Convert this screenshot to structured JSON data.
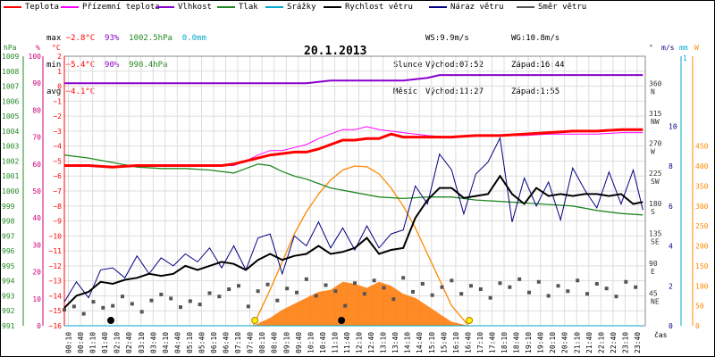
{
  "legend": [
    {
      "label": "Teplota",
      "color": "#ff0000"
    },
    {
      "label": "Přízemní teplota",
      "color": "#ff00ff"
    },
    {
      "label": "Vlhkost",
      "color": "#8800cc"
    },
    {
      "label": "Tlak",
      "color": "#228822"
    },
    {
      "label": "Srážky",
      "color": "#00aacc"
    },
    {
      "label": "Rychlost větru",
      "color": "#000000"
    },
    {
      "label": "Náraz větru",
      "color": "#000080"
    },
    {
      "label": "Směr větru",
      "color": "#555555"
    }
  ],
  "stats": {
    "max_label": "max",
    "max_temp": "−2.8°C",
    "max_hum": "93%",
    "max_press": "1002.5hPa",
    "max_rain": "0.0mm",
    "min_label": "min",
    "min_temp": "−5.4°C",
    "min_hum": "90%",
    "min_press": "998.4hPa",
    "avg_label": "avg",
    "avg_temp": "−4.1°C",
    "ws": "WS:9.9m/s",
    "wg": "WG:10.8m/s",
    "sun_label": "Slunce",
    "sunrise": "Východ:07:52",
    "sunset": "Západ:16:44",
    "moon_label": "Měsíc",
    "moonrise": "Východ:11:27",
    "moonset": "Západ:1:55"
  },
  "date": "20.1.2013",
  "axis_headers": {
    "hpa": "hPa",
    "pct": "%",
    "degc": "°C",
    "dir": "°",
    "ms": "m/s",
    "mm": "mm",
    "w": "W",
    "cas": "čas"
  },
  "colors": {
    "temp": "#ff0000",
    "ground_temp": "#ff00ff",
    "humidity": "#8800cc",
    "pressure": "#228822",
    "rain": "#00aacc",
    "wind": "#000000",
    "gust": "#000080",
    "direction": "#555555",
    "solar": "#ff8800",
    "solar_fill": "#ff7700"
  },
  "chart_data": {
    "type": "line",
    "title": "20.1.2013",
    "x_ticks": [
      "00:10",
      "00:40",
      "01:10",
      "01:40",
      "02:10",
      "02:40",
      "03:10",
      "03:40",
      "04:10",
      "04:40",
      "05:10",
      "05:40",
      "06:10",
      "06:40",
      "07:10",
      "07:40",
      "08:10",
      "08:40",
      "09:10",
      "09:40",
      "10:10",
      "10:40",
      "11:10",
      "11:40",
      "12:10",
      "12:40",
      "13:10",
      "13:40",
      "14:10",
      "14:40",
      "15:10",
      "15:40",
      "16:10",
      "16:40",
      "17:10",
      "17:40",
      "18:10",
      "18:40",
      "19:10",
      "19:40",
      "20:10",
      "20:40",
      "21:10",
      "21:40",
      "22:10",
      "22:40",
      "23:10",
      "23:40"
    ],
    "axes": {
      "pressure_hpa": {
        "min": 991,
        "max": 1009,
        "ticks": [
          991,
          992,
          993,
          994,
          995,
          996,
          997,
          998,
          999,
          1000,
          1001,
          1002,
          1003,
          1004,
          1005,
          1006,
          1007,
          1008,
          1009
        ]
      },
      "humidity_pct": {
        "min": 0,
        "max": 100,
        "ticks": [
          0,
          10,
          20,
          30,
          40,
          50,
          60,
          70,
          80,
          90,
          100
        ]
      },
      "temp_c": {
        "min": -16,
        "max": 2,
        "ticks": [
          2,
          1,
          0,
          -1,
          -2,
          -3,
          -4,
          -5,
          -6,
          -7,
          -8,
          -9,
          -10,
          -11,
          -12,
          -13,
          -14,
          -15,
          -16
        ]
      },
      "direction": {
        "ticks": [
          {
            "v": 360,
            "l": "N"
          },
          {
            "v": 315,
            "l": "NW"
          },
          {
            "v": 270,
            "l": "W"
          },
          {
            "v": 225,
            "l": "SW"
          },
          {
            "v": 180,
            "l": "S"
          },
          {
            "v": 135,
            "l": "SE"
          },
          {
            "v": 90,
            "l": "E"
          },
          {
            "v": 45,
            "l": "NE"
          }
        ]
      },
      "wind_ms": {
        "min": 0,
        "max": 10,
        "ticks": [
          0,
          2,
          4,
          6,
          8,
          10
        ]
      },
      "rain_mm": {
        "ticks": [
          1
        ]
      },
      "solar_w": {
        "min": 0,
        "max": 450,
        "ticks": [
          0,
          50,
          100,
          150,
          200,
          250,
          300,
          350,
          400,
          450
        ]
      }
    },
    "series": [
      {
        "name": "Teplota",
        "axis": "temp_c",
        "x": [
          0,
          1,
          2,
          3,
          4,
          5,
          6,
          6.5,
          7,
          7.5,
          8,
          8.5,
          9,
          9.5,
          10,
          10.5,
          11,
          11.5,
          12,
          12.5,
          13,
          13.5,
          14,
          15,
          16,
          17,
          18,
          19,
          20,
          21,
          22,
          23,
          23.9
        ],
        "y": [
          -5.3,
          -5.3,
          -5.4,
          -5.3,
          -5.3,
          -5.3,
          -5.3,
          -5.3,
          -5.2,
          -5.0,
          -4.8,
          -4.6,
          -4.5,
          -4.4,
          -4.4,
          -4.2,
          -3.9,
          -3.6,
          -3.6,
          -3.5,
          -3.5,
          -3.2,
          -3.4,
          -3.4,
          -3.4,
          -3.3,
          -3.3,
          -3.2,
          -3.1,
          -3.0,
          -3.0,
          -2.9,
          -2.9
        ]
      },
      {
        "name": "Přízemní teplota",
        "axis": "temp_c",
        "x": [
          0,
          1,
          2,
          3,
          4,
          5,
          6,
          7,
          7.5,
          8,
          8.5,
          9,
          9.5,
          10,
          10.5,
          11,
          11.5,
          12,
          12.5,
          13,
          13.5,
          14,
          15,
          16,
          17,
          18,
          19,
          20,
          21,
          22,
          23,
          23.9
        ],
        "y": [
          -5.3,
          -5.3,
          -5.4,
          -5.3,
          -5.3,
          -5.3,
          -5.3,
          -5.3,
          -5.0,
          -4.6,
          -4.3,
          -4.3,
          -4.1,
          -3.9,
          -3.5,
          -3.2,
          -2.9,
          -2.9,
          -2.7,
          -2.9,
          -3.0,
          -3.1,
          -3.3,
          -3.4,
          -3.3,
          -3.3,
          -3.3,
          -3.2,
          -3.2,
          -3.2,
          -3.1,
          -3.1
        ]
      },
      {
        "name": "Vlhkost",
        "axis": "humidity_pct",
        "x": [
          0,
          1,
          2,
          3,
          4,
          5,
          6,
          7,
          8,
          9,
          10,
          11,
          12,
          13,
          14,
          15,
          15.5,
          16,
          17,
          18,
          19,
          20,
          21,
          22,
          23,
          23.9
        ],
        "y": [
          90,
          90,
          90,
          90,
          90,
          90,
          90,
          90,
          90,
          90,
          90,
          91,
          91,
          91,
          91,
          92,
          93,
          93,
          93,
          93,
          93,
          93,
          93,
          93,
          93,
          93
        ]
      },
      {
        "name": "Tlak",
        "axis": "pressure_hpa",
        "x": [
          0,
          1,
          2,
          3,
          4,
          5,
          6,
          7,
          7.5,
          8,
          8.5,
          9,
          9.5,
          10,
          10.5,
          11,
          12,
          13,
          14,
          15,
          16,
          17,
          18,
          19,
          20,
          21,
          22,
          23,
          23.9
        ],
        "y": [
          1002.4,
          1002.2,
          1001.9,
          1001.6,
          1001.5,
          1001.5,
          1001.4,
          1001.2,
          1001.5,
          1001.8,
          1001.7,
          1001.3,
          1001.0,
          1000.8,
          1000.5,
          1000.2,
          999.9,
          999.6,
          999.5,
          999.6,
          999.6,
          999.4,
          999.3,
          999.2,
          999.1,
          999.0,
          998.7,
          998.5,
          998.4
        ]
      },
      {
        "name": "Rychlost větru",
        "axis": "wind_ms",
        "x": [
          0,
          0.5,
          1,
          1.5,
          2,
          2.5,
          3,
          3.5,
          4,
          4.5,
          5,
          5.5,
          6,
          6.5,
          7,
          7.5,
          8,
          8.5,
          9,
          9.5,
          10,
          10.5,
          11,
          11.5,
          12,
          12.5,
          13,
          13.5,
          14,
          14.5,
          15,
          15.5,
          16,
          16.5,
          17,
          17.5,
          18,
          18.5,
          19,
          19.5,
          20,
          20.5,
          21,
          21.5,
          22,
          22.5,
          23,
          23.5,
          23.9
        ],
        "y": [
          0.9,
          1.5,
          1.7,
          2.2,
          2.1,
          2.3,
          2.4,
          2.6,
          2.5,
          2.6,
          3.0,
          2.8,
          3.0,
          3.2,
          3.1,
          2.8,
          3.3,
          3.6,
          3.3,
          3.5,
          3.6,
          4.0,
          3.6,
          3.7,
          3.9,
          4.4,
          3.6,
          3.8,
          3.9,
          5.4,
          6.3,
          6.9,
          6.9,
          6.4,
          6.5,
          6.6,
          7.5,
          6.6,
          6.1,
          6.9,
          6.5,
          6.6,
          6.5,
          6.6,
          6.6,
          6.5,
          6.6,
          6.1,
          6.2
        ]
      },
      {
        "name": "Náraz větru",
        "axis": "wind_ms",
        "x": [
          0,
          0.5,
          1,
          1.5,
          2,
          2.5,
          3,
          3.5,
          4,
          4.5,
          5,
          5.5,
          6,
          6.5,
          7,
          7.5,
          8,
          8.5,
          9,
          9.5,
          10,
          10.5,
          11,
          11.5,
          12,
          12.5,
          13,
          13.5,
          14,
          14.5,
          15,
          15.5,
          16,
          16.5,
          17,
          17.5,
          18,
          18.5,
          19,
          19.5,
          20,
          20.5,
          21,
          21.5,
          22,
          22.5,
          23,
          23.5,
          23.9
        ],
        "y": [
          1.2,
          2.2,
          1.4,
          2.8,
          2.9,
          2.4,
          3.5,
          2.6,
          3.4,
          3.0,
          3.6,
          3.2,
          3.9,
          2.9,
          4.0,
          2.8,
          4.4,
          4.6,
          2.6,
          4.5,
          4.0,
          5.2,
          3.9,
          4.9,
          3.8,
          5.0,
          3.9,
          4.6,
          4.8,
          7.0,
          6.1,
          8.6,
          7.8,
          5.6,
          7.6,
          8.2,
          9.4,
          5.2,
          7.4,
          6.0,
          7.2,
          5.3,
          7.9,
          6.8,
          5.9,
          7.7,
          6.1,
          7.8,
          5.8
        ]
      },
      {
        "name": "Směr větru",
        "axis": "direction",
        "style": "points",
        "x": [
          0,
          0.4,
          0.8,
          1.2,
          1.6,
          2,
          2.4,
          2.8,
          3.2,
          3.6,
          4,
          4.4,
          4.8,
          5.2,
          5.6,
          6,
          6.4,
          6.8,
          7.2,
          7.6,
          8,
          8.4,
          8.8,
          9.2,
          9.6,
          10,
          10.4,
          10.8,
          11.2,
          11.6,
          12,
          12.4,
          12.8,
          13.2,
          13.6,
          14,
          14.4,
          14.8,
          15.2,
          15.6,
          16,
          16.4,
          16.8,
          17.2,
          17.6,
          18,
          18.4,
          18.8,
          19.2,
          19.6,
          20,
          20.4,
          20.8,
          21.2,
          21.6,
          22,
          22.4,
          22.8,
          23.2,
          23.6
        ],
        "y": [
          24,
          29,
          18,
          36,
          27,
          30,
          44,
          33,
          21,
          38,
          47,
          41,
          28,
          37,
          32,
          49,
          44,
          55,
          60,
          29,
          52,
          62,
          38,
          56,
          50,
          70,
          45,
          61,
          52,
          30,
          64,
          48,
          68,
          57,
          40,
          72,
          51,
          63,
          46,
          58,
          68,
          48,
          60,
          55,
          42,
          64,
          58,
          70,
          50,
          66,
          45,
          60,
          52,
          68,
          48,
          63,
          56,
          44,
          66,
          58
        ]
      },
      {
        "name": "Srážky",
        "axis": "rain_mm",
        "x": [
          0,
          23.9
        ],
        "y": [
          0,
          0
        ]
      },
      {
        "name": "Solar",
        "axis": "solar_w",
        "style": "area",
        "x": [
          7.8,
          8.5,
          9,
          9.5,
          10,
          10.5,
          11,
          11.5,
          12,
          12.5,
          13,
          13.5,
          14,
          14.5,
          15,
          15.5,
          16,
          16.7
        ],
        "y": [
          0,
          20,
          40,
          55,
          70,
          85,
          90,
          110,
          105,
          95,
          110,
          100,
          80,
          70,
          50,
          30,
          10,
          0
        ]
      },
      {
        "name": "Solar max",
        "axis": "solar_w",
        "style": "curve",
        "x": [
          7.8,
          8.5,
          9,
          9.5,
          10,
          10.5,
          11,
          11.5,
          12,
          12.5,
          13,
          13.5,
          14,
          14.5,
          15,
          15.5,
          16,
          16.7
        ],
        "y": [
          0,
          90,
          160,
          230,
          285,
          330,
          365,
          390,
          400,
          398,
          380,
          345,
          300,
          245,
          180,
          115,
          50,
          0
        ]
      }
    ],
    "markers": [
      {
        "name": "sunrise",
        "x": 7.87
      },
      {
        "name": "sunset",
        "x": 16.73
      },
      {
        "name": "moonset",
        "x": 1.92
      },
      {
        "name": "moonrise",
        "x": 11.45
      }
    ]
  }
}
